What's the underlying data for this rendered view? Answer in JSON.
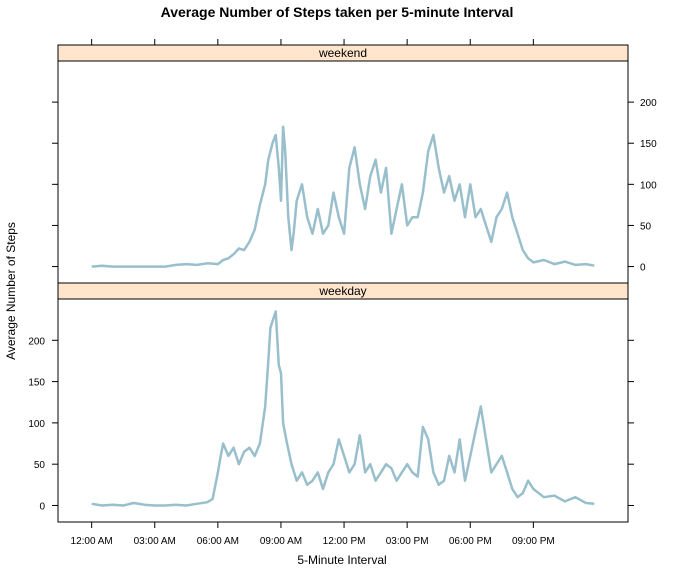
{
  "chart_data": {
    "type": "line",
    "title": "Average Number of Steps taken per 5-minute Interval",
    "xlabel": "5-Minute Interval",
    "ylabel": "Average Number of Steps",
    "x_ticks": [
      "12:00 AM",
      "03:00 AM",
      "06:00 AM",
      "09:00 AM",
      "12:00 PM",
      "03:00 PM",
      "06:00 PM",
      "09:00 PM"
    ],
    "x_tick_hours": [
      0,
      3,
      6,
      9,
      12,
      15,
      18,
      21
    ],
    "xlim_hours": [
      -1.6,
      25.5
    ],
    "ylim": [
      -20,
      250
    ],
    "y_ticks": [
      0,
      50,
      100,
      150,
      200
    ],
    "line_color": "#98bfcb",
    "strip_color": "#ffe5cc",
    "grid": false,
    "panels": [
      {
        "name": "weekend",
        "x_hours": [
          0,
          0.5,
          1,
          1.5,
          2,
          2.5,
          3,
          3.5,
          4,
          4.5,
          5,
          5.5,
          6,
          6.25,
          6.5,
          6.75,
          7,
          7.25,
          7.5,
          7.75,
          8,
          8.25,
          8.4,
          8.6,
          8.75,
          8.9,
          9,
          9.1,
          9.2,
          9.35,
          9.5,
          9.6,
          9.75,
          10,
          10.25,
          10.5,
          10.75,
          11,
          11.25,
          11.5,
          11.75,
          12,
          12.25,
          12.5,
          12.75,
          13,
          13.25,
          13.5,
          13.75,
          14,
          14.25,
          14.5,
          14.75,
          15,
          15.25,
          15.5,
          15.75,
          16,
          16.25,
          16.5,
          16.75,
          17,
          17.25,
          17.5,
          17.75,
          18,
          18.25,
          18.5,
          18.75,
          19,
          19.25,
          19.5,
          19.75,
          20,
          20.25,
          20.5,
          20.75,
          21,
          21.5,
          22,
          22.5,
          23,
          23.5,
          23.9
        ],
        "values": [
          0,
          1,
          0,
          0,
          0,
          0,
          0,
          0,
          2,
          3,
          2,
          4,
          3,
          8,
          10,
          15,
          22,
          20,
          30,
          45,
          75,
          100,
          130,
          150,
          160,
          120,
          80,
          170,
          140,
          60,
          20,
          40,
          80,
          100,
          60,
          40,
          70,
          40,
          50,
          90,
          60,
          40,
          120,
          145,
          100,
          70,
          110,
          130,
          90,
          120,
          40,
          70,
          100,
          50,
          60,
          60,
          90,
          140,
          160,
          120,
          90,
          110,
          80,
          100,
          60,
          100,
          60,
          70,
          50,
          30,
          60,
          70,
          90,
          60,
          40,
          20,
          10,
          5,
          8,
          3,
          6,
          2,
          3,
          1
        ]
      },
      {
        "name": "weekday",
        "x_hours": [
          0,
          0.5,
          1,
          1.5,
          2,
          2.5,
          3,
          3.5,
          4,
          4.5,
          5,
          5.5,
          5.75,
          6,
          6.1,
          6.25,
          6.5,
          6.75,
          7,
          7.25,
          7.5,
          7.75,
          8,
          8.25,
          8.4,
          8.5,
          8.75,
          8.9,
          9,
          9.1,
          9.25,
          9.5,
          9.75,
          10,
          10.25,
          10.5,
          10.75,
          11,
          11.25,
          11.5,
          11.75,
          12,
          12.25,
          12.5,
          12.75,
          13,
          13.25,
          13.5,
          13.75,
          14,
          14.25,
          14.5,
          14.75,
          15,
          15.25,
          15.5,
          15.75,
          16,
          16.25,
          16.5,
          16.75,
          17,
          17.25,
          17.5,
          17.75,
          18,
          18.25,
          18.5,
          18.75,
          19,
          19.25,
          19.5,
          19.75,
          20,
          20.25,
          20.5,
          20.75,
          21,
          21.5,
          22,
          22.5,
          23,
          23.5,
          23.9
        ],
        "values": [
          2,
          0,
          1,
          0,
          3,
          1,
          0,
          0,
          1,
          0,
          2,
          4,
          8,
          40,
          55,
          75,
          60,
          70,
          50,
          65,
          70,
          60,
          75,
          120,
          175,
          215,
          235,
          170,
          160,
          100,
          80,
          50,
          30,
          40,
          25,
          30,
          40,
          20,
          40,
          50,
          80,
          60,
          40,
          50,
          85,
          40,
          50,
          30,
          40,
          50,
          45,
          30,
          40,
          50,
          40,
          35,
          95,
          80,
          40,
          25,
          30,
          60,
          40,
          80,
          30,
          60,
          90,
          120,
          80,
          40,
          50,
          60,
          40,
          20,
          10,
          15,
          30,
          20,
          10,
          12,
          5,
          10,
          3,
          2
        ]
      }
    ]
  }
}
